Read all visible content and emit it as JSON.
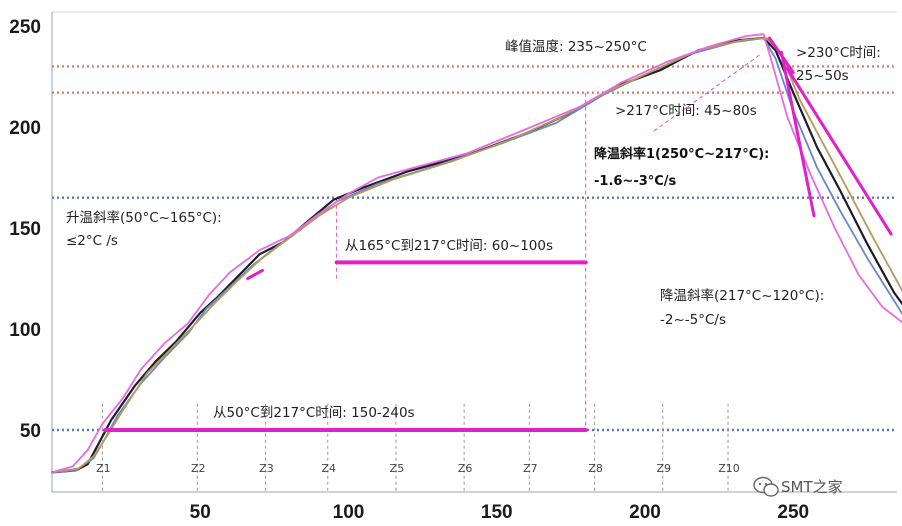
{
  "chart_data": {
    "type": "line",
    "xlim": [
      0,
      290
    ],
    "ylim": [
      25,
      255
    ],
    "x_ticks": [
      {
        "value": 50,
        "label": "50"
      },
      {
        "value": 100,
        "label": "100"
      },
      {
        "value": 150,
        "label": "150"
      },
      {
        "value": 200,
        "label": "200"
      },
      {
        "value": 250,
        "label": "250"
      }
    ],
    "y_ticks": [
      {
        "value": 50,
        "label": "50"
      },
      {
        "value": 100,
        "label": "100"
      },
      {
        "value": 150,
        "label": "150"
      },
      {
        "value": 200,
        "label": "200"
      },
      {
        "value": 250,
        "label": "250"
      }
    ],
    "zones": [
      {
        "label": "Z1",
        "x": 17
      },
      {
        "label": "Z2",
        "x": 49
      },
      {
        "label": "Z3",
        "x": 72
      },
      {
        "label": "Z4",
        "x": 93
      },
      {
        "label": "Z5",
        "x": 116
      },
      {
        "label": "Z6",
        "x": 139
      },
      {
        "label": "Z7",
        "x": 161
      },
      {
        "label": "Z8",
        "x": 183
      },
      {
        "label": "Z9",
        "x": 206
      },
      {
        "label": "Z10",
        "x": 228
      }
    ],
    "reference_lines": [
      {
        "y": 230,
        "color": "#d9826a",
        "style": "dotted"
      },
      {
        "y": 217,
        "color": "#d9826a",
        "style": "dotted"
      },
      {
        "y": 165,
        "color": "#5b78b8",
        "style": "dotted"
      },
      {
        "y": 50,
        "color": "#5b78b8",
        "style": "dotted"
      }
    ],
    "series": [
      {
        "color": "#1c1c2c",
        "points": [
          [
            0,
            29
          ],
          [
            8,
            30
          ],
          [
            12,
            33
          ],
          [
            16,
            44
          ],
          [
            20,
            55
          ],
          [
            28,
            72
          ],
          [
            35,
            84
          ],
          [
            42,
            94
          ],
          [
            50,
            108
          ],
          [
            56,
            116
          ],
          [
            62,
            125
          ],
          [
            70,
            137
          ],
          [
            78,
            143
          ],
          [
            86,
            153
          ],
          [
            95,
            164
          ],
          [
            105,
            170
          ],
          [
            120,
            178
          ],
          [
            140,
            186
          ],
          [
            160,
            197
          ],
          [
            175,
            207
          ],
          [
            190,
            220
          ],
          [
            205,
            228
          ],
          [
            218,
            238
          ],
          [
            232,
            243
          ],
          [
            240,
            244
          ],
          [
            244,
            238
          ],
          [
            250,
            217
          ],
          [
            258,
            190
          ],
          [
            266,
            168
          ],
          [
            275,
            142
          ],
          [
            284,
            118
          ],
          [
            290,
            106
          ]
        ]
      },
      {
        "color": "#6a86c8",
        "points": [
          [
            0,
            29
          ],
          [
            8,
            30
          ],
          [
            14,
            36
          ],
          [
            18,
            46
          ],
          [
            22,
            57
          ],
          [
            30,
            73
          ],
          [
            38,
            86
          ],
          [
            46,
            98
          ],
          [
            52,
            110
          ],
          [
            60,
            121
          ],
          [
            68,
            132
          ],
          [
            76,
            141
          ],
          [
            86,
            152
          ],
          [
            96,
            163
          ],
          [
            110,
            172
          ],
          [
            130,
            181
          ],
          [
            150,
            191
          ],
          [
            170,
            202
          ],
          [
            186,
            216
          ],
          [
            200,
            226
          ],
          [
            215,
            236
          ],
          [
            230,
            242
          ],
          [
            240,
            244
          ],
          [
            244,
            234
          ],
          [
            250,
            208
          ],
          [
            258,
            180
          ],
          [
            266,
            158
          ],
          [
            275,
            135
          ],
          [
            284,
            114
          ],
          [
            290,
            100
          ]
        ]
      },
      {
        "color": "#b59a58",
        "points": [
          [
            0,
            29
          ],
          [
            9,
            31
          ],
          [
            14,
            37
          ],
          [
            19,
            48
          ],
          [
            24,
            60
          ],
          [
            32,
            78
          ],
          [
            40,
            90
          ],
          [
            48,
            102
          ],
          [
            55,
            113
          ],
          [
            62,
            123
          ],
          [
            70,
            134
          ],
          [
            80,
            145
          ],
          [
            90,
            156
          ],
          [
            100,
            165
          ],
          [
            115,
            174
          ],
          [
            135,
            183
          ],
          [
            155,
            194
          ],
          [
            172,
            205
          ],
          [
            188,
            218
          ],
          [
            203,
            228
          ],
          [
            218,
            238
          ],
          [
            233,
            243
          ],
          [
            241,
            244
          ],
          [
            246,
            236
          ],
          [
            252,
            214
          ],
          [
            260,
            192
          ],
          [
            268,
            170
          ],
          [
            277,
            145
          ],
          [
            286,
            121
          ],
          [
            290,
            110
          ]
        ]
      },
      {
        "color": "#e86ae0",
        "points": [
          [
            0,
            29
          ],
          [
            7,
            32
          ],
          [
            12,
            40
          ],
          [
            17,
            53
          ],
          [
            24,
            66
          ],
          [
            30,
            80
          ],
          [
            38,
            93
          ],
          [
            46,
            103
          ],
          [
            53,
            117
          ],
          [
            60,
            128
          ],
          [
            70,
            139
          ],
          [
            80,
            146
          ],
          [
            90,
            157
          ],
          [
            100,
            167
          ],
          [
            110,
            175
          ],
          [
            125,
            181
          ],
          [
            140,
            187
          ],
          [
            160,
            199
          ],
          [
            178,
            210
          ],
          [
            192,
            222
          ],
          [
            207,
            232
          ],
          [
            222,
            240
          ],
          [
            234,
            245
          ],
          [
            240,
            246
          ],
          [
            243,
            231
          ],
          [
            248,
            205
          ],
          [
            256,
            176
          ],
          [
            264,
            150
          ],
          [
            272,
            127
          ],
          [
            280,
            111
          ],
          [
            287,
            103
          ],
          [
            290,
            97
          ]
        ]
      }
    ],
    "magenta_segments": [
      {
        "from": [
          18,
          50
        ],
        "to": [
          180,
          50
        ],
        "width": 4
      },
      {
        "from": [
          96,
          133
        ],
        "to": [
          180,
          133
        ],
        "width": 4
      },
      {
        "from": [
          242,
          244
        ],
        "to": [
          250,
          227
        ],
        "width": 3
      },
      {
        "from": [
          246,
          237
        ],
        "to": [
          257,
          156
        ],
        "width": 3
      },
      {
        "from": [
          248,
          229
        ],
        "to": [
          283,
          147
        ],
        "width": 3
      },
      {
        "from": [
          66,
          125
        ],
        "to": [
          71,
          129
        ],
        "width": 3
      }
    ],
    "annotations": {
      "peak": "峰值温度: 235~250°C",
      "above230_line1": ">230°C时间:",
      "above230_line2": "25~50s",
      "above217": ">217°C时间: 45~80s",
      "cool1_line1": "降温斜率1(250°C~217°C):",
      "cool1_line2": "-1.6~-3°C/s",
      "ramp_line1": "升温斜率(50°C~165°C):",
      "ramp_line2": "≤2°C /s",
      "t165_217": "从165°C到217°C时间: 60~100s",
      "cool2_line1": "降温斜率(217°C~120°C):",
      "cool2_line2": "-2~-5°C/s",
      "t50_217": "从50°C到217°C时间: 150-240s",
      "watermark": "SMT之家"
    }
  }
}
